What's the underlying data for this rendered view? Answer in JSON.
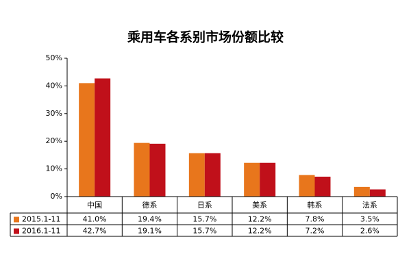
{
  "chart_data": {
    "type": "bar",
    "title": "乘用车各系别市场份额比较",
    "categories": [
      "中国",
      "德系",
      "日系",
      "美系",
      "韩系",
      "法系"
    ],
    "series": [
      {
        "name": "2015.1-11",
        "color": "#e8761c",
        "values": [
          41.0,
          19.4,
          15.7,
          12.2,
          7.8,
          3.5
        ],
        "value_labels": [
          "41.0%",
          "19.4%",
          "15.7%",
          "12.2%",
          "7.8%",
          "3.5%"
        ]
      },
      {
        "name": "2016.1-11",
        "color": "#c0101a",
        "values": [
          42.7,
          19.1,
          15.7,
          12.2,
          7.2,
          2.6
        ],
        "value_labels": [
          "42.7%",
          "19.1%",
          "15.7%",
          "12.2%",
          "7.2%",
          "2.6%"
        ]
      }
    ],
    "ylim": [
      0,
      50
    ],
    "yticks": [
      {
        "value": 0,
        "label": "0%"
      },
      {
        "value": 10,
        "label": "10%"
      },
      {
        "value": 20,
        "label": "20%"
      },
      {
        "value": 30,
        "label": "30%"
      },
      {
        "value": 40,
        "label": "40%"
      },
      {
        "value": 50,
        "label": "50%"
      }
    ]
  }
}
